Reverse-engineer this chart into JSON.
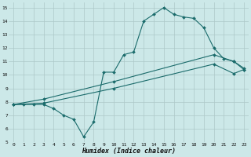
{
  "xlabel": "Humidex (Indice chaleur)",
  "background_color": "#cce8e8",
  "grid_color": "#adc8c8",
  "line_color": "#1a6b6b",
  "xlim": [
    -0.5,
    23.5
  ],
  "ylim": [
    5,
    15.4
  ],
  "xticks": [
    0,
    1,
    2,
    3,
    4,
    5,
    6,
    7,
    8,
    9,
    10,
    11,
    12,
    13,
    14,
    15,
    16,
    17,
    18,
    19,
    20,
    21,
    22,
    23
  ],
  "yticks": [
    5,
    6,
    7,
    8,
    9,
    10,
    11,
    12,
    13,
    14,
    15
  ],
  "line1_x": [
    0,
    1,
    2,
    3,
    4,
    5,
    6,
    7,
    8,
    9,
    10,
    11,
    12,
    13,
    14,
    15,
    16,
    17,
    18,
    19,
    20,
    21,
    22,
    23
  ],
  "line1_y": [
    7.8,
    7.8,
    7.8,
    7.8,
    7.5,
    7.0,
    6.7,
    5.4,
    6.5,
    10.2,
    10.2,
    11.5,
    11.7,
    14.0,
    14.5,
    15.0,
    14.5,
    14.3,
    14.2,
    13.5,
    12.0,
    11.2,
    11.0,
    10.5
  ],
  "line2_x": [
    0,
    3,
    10,
    20,
    22,
    23
  ],
  "line2_y": [
    7.8,
    8.2,
    9.5,
    11.5,
    11.0,
    10.4
  ],
  "line3_x": [
    0,
    3,
    10,
    20,
    22,
    23
  ],
  "line3_y": [
    7.8,
    7.9,
    9.0,
    10.8,
    10.1,
    10.4
  ]
}
